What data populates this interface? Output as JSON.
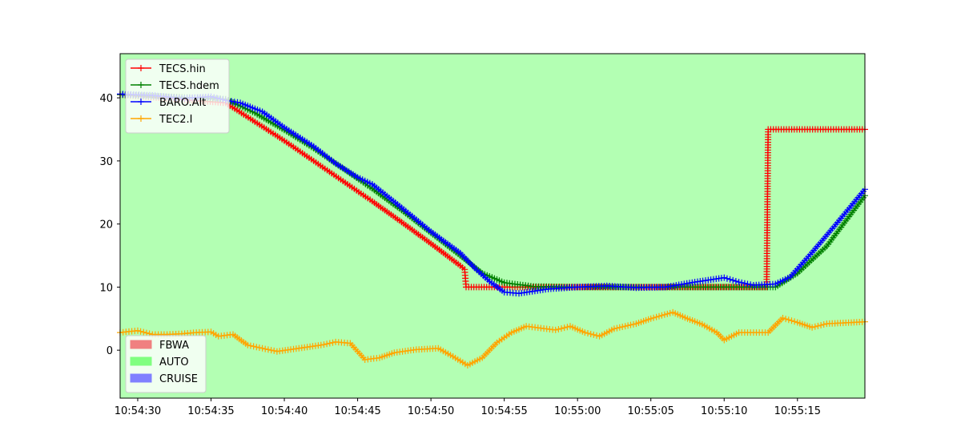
{
  "chart_data": {
    "type": "line",
    "title": "",
    "xlabel": "",
    "ylabel": "",
    "x_unit": "time",
    "xlim": [
      "10:54:28.8",
      "10:55:19.6"
    ],
    "ylim": [
      -7.6,
      47.0
    ],
    "y_ticks": [
      0,
      10,
      20,
      30,
      40
    ],
    "x_ticks": [
      "10:54:30",
      "10:54:35",
      "10:54:40",
      "10:54:45",
      "10:54:50",
      "10:54:55",
      "10:55:00",
      "10:55:05",
      "10:55:10",
      "10:55:15"
    ],
    "grid": false,
    "background_mode": "AUTO",
    "series": [
      {
        "name": "TECS.hin",
        "color": "#ff0000",
        "points": [
          [
            "10:54:28.8",
            40.5
          ],
          [
            "10:54:36.0",
            39.2
          ],
          [
            "10:54:38.0",
            36.2
          ],
          [
            "10:54:40.0",
            33.2
          ],
          [
            "10:54:42.0",
            30.0
          ],
          [
            "10:54:44.0",
            26.8
          ],
          [
            "10:54:46.0",
            23.6
          ],
          [
            "10:54:48.0",
            20.3
          ],
          [
            "10:54:50.0",
            16.9
          ],
          [
            "10:54:52.0",
            13.4
          ],
          [
            "10:54:52.3",
            12.8
          ],
          [
            "10:54:52.4",
            10.0
          ],
          [
            "10:55:12.9",
            10.0
          ],
          [
            "10:55:13.0",
            35.0
          ],
          [
            "10:55:19.6",
            35.0
          ]
        ]
      },
      {
        "name": "TECS.hdem",
        "color": "#008000",
        "points": [
          [
            "10:54:28.8",
            40.5
          ],
          [
            "10:54:36.0",
            39.8
          ],
          [
            "10:54:38.0",
            37.6
          ],
          [
            "10:54:40.0",
            34.9
          ],
          [
            "10:54:42.0",
            32.0
          ],
          [
            "10:54:44.0",
            28.8
          ],
          [
            "10:54:46.0",
            25.6
          ],
          [
            "10:54:48.0",
            22.2
          ],
          [
            "10:54:50.0",
            18.6
          ],
          [
            "10:54:52.0",
            15.0
          ],
          [
            "10:54:53.5",
            12.2
          ],
          [
            "10:54:55.0",
            10.7
          ],
          [
            "10:54:57.0",
            10.1
          ],
          [
            "10:55:00.0",
            10.0
          ],
          [
            "10:55:13.5",
            10.0
          ],
          [
            "10:55:15.0",
            12.2
          ],
          [
            "10:55:17.0",
            16.5
          ],
          [
            "10:55:19.6",
            24.5
          ]
        ]
      },
      {
        "name": "BARO.Alt",
        "color": "#0000ff",
        "points": [
          [
            "10:54:28.8",
            40.6
          ],
          [
            "10:54:31.0",
            40.4
          ],
          [
            "10:54:33.0",
            39.9
          ],
          [
            "10:54:35.0",
            40.2
          ],
          [
            "10:54:36.0",
            39.6
          ],
          [
            "10:54:37.0",
            39.2
          ],
          [
            "10:54:38.5",
            37.8
          ],
          [
            "10:54:40.0",
            35.3
          ],
          [
            "10:54:42.0",
            32.3
          ],
          [
            "10:54:43.5",
            29.6
          ],
          [
            "10:54:45.0",
            27.4
          ],
          [
            "10:54:46.0",
            26.3
          ],
          [
            "10:54:48.0",
            22.6
          ],
          [
            "10:54:50.0",
            18.8
          ],
          [
            "10:54:52.0",
            15.4
          ],
          [
            "10:54:53.0",
            13.0
          ],
          [
            "10:54:54.0",
            10.9
          ],
          [
            "10:54:55.0",
            9.2
          ],
          [
            "10:54:56.0",
            9.0
          ],
          [
            "10:54:58.0",
            9.7
          ],
          [
            "10:55:00.0",
            10.0
          ],
          [
            "10:55:02.0",
            10.2
          ],
          [
            "10:55:04.0",
            9.9
          ],
          [
            "10:55:06.0",
            10.0
          ],
          [
            "10:55:08.0",
            10.8
          ],
          [
            "10:55:10.0",
            11.5
          ],
          [
            "10:55:11.0",
            10.8
          ],
          [
            "10:55:12.0",
            10.3
          ],
          [
            "10:55:13.5",
            10.5
          ],
          [
            "10:55:14.5",
            11.6
          ],
          [
            "10:55:16.0",
            15.5
          ],
          [
            "10:55:17.5",
            19.6
          ],
          [
            "10:55:19.6",
            25.5
          ]
        ]
      },
      {
        "name": "TEC2.I",
        "color": "#ffa500",
        "points": [
          [
            "10:54:28.8",
            2.8
          ],
          [
            "10:54:30.0",
            3.1
          ],
          [
            "10:54:31.0",
            2.5
          ],
          [
            "10:54:32.0",
            2.5
          ],
          [
            "10:54:33.0",
            2.6
          ],
          [
            "10:54:34.0",
            2.8
          ],
          [
            "10:54:35.0",
            2.9
          ],
          [
            "10:54:35.5",
            2.2
          ],
          [
            "10:54:36.5",
            2.5
          ],
          [
            "10:54:37.5",
            0.8
          ],
          [
            "10:54:38.5",
            0.3
          ],
          [
            "10:54:39.5",
            -0.2
          ],
          [
            "10:54:41.0",
            0.3
          ],
          [
            "10:54:42.5",
            0.8
          ],
          [
            "10:54:43.5",
            1.3
          ],
          [
            "10:54:44.5",
            1.1
          ],
          [
            "10:54:45.5",
            -1.5
          ],
          [
            "10:54:46.5",
            -1.2
          ],
          [
            "10:54:47.5",
            -0.4
          ],
          [
            "10:54:49.0",
            0.1
          ],
          [
            "10:54:50.5",
            0.3
          ],
          [
            "10:54:51.5",
            -1.0
          ],
          [
            "10:54:52.5",
            -2.4
          ],
          [
            "10:54:53.5",
            -1.2
          ],
          [
            "10:54:54.5",
            1.2
          ],
          [
            "10:54:55.5",
            2.8
          ],
          [
            "10:54:56.5",
            3.8
          ],
          [
            "10:54:57.5",
            3.5
          ],
          [
            "10:54:58.5",
            3.2
          ],
          [
            "10:54:59.5",
            3.8
          ],
          [
            "10:55:00.5",
            2.8
          ],
          [
            "10:55:01.5",
            2.2
          ],
          [
            "10:55:02.5",
            3.4
          ],
          [
            "10:55:04.0",
            4.2
          ],
          [
            "10:55:05.0",
            5.0
          ],
          [
            "10:55:06.5",
            6.0
          ],
          [
            "10:55:07.5",
            5.0
          ],
          [
            "10:55:08.5",
            4.1
          ],
          [
            "10:55:09.5",
            2.8
          ],
          [
            "10:55:10.0",
            1.6
          ],
          [
            "10:55:11.0",
            2.8
          ],
          [
            "10:55:12.0",
            2.8
          ],
          [
            "10:55:13.0",
            2.8
          ],
          [
            "10:55:14.0",
            5.1
          ],
          [
            "10:55:15.0",
            4.4
          ],
          [
            "10:55:16.0",
            3.6
          ],
          [
            "10:55:17.0",
            4.2
          ],
          [
            "10:55:19.6",
            4.5
          ]
        ]
      }
    ],
    "legends": [
      {
        "placement": "upper-left",
        "type": "line",
        "entries": [
          {
            "label": "TECS.hin",
            "color": "#ff0000"
          },
          {
            "label": "TECS.hdem",
            "color": "#008000"
          },
          {
            "label": "BARO.Alt",
            "color": "#0000ff"
          },
          {
            "label": "TEC2.I",
            "color": "#ffa500"
          }
        ]
      },
      {
        "placement": "lower-left",
        "type": "patch",
        "entries": [
          {
            "label": "FBWA",
            "color": "#f08080"
          },
          {
            "label": "AUTO",
            "color": "#80ff80"
          },
          {
            "label": "CRUISE",
            "color": "#8080ff"
          }
        ]
      }
    ]
  }
}
